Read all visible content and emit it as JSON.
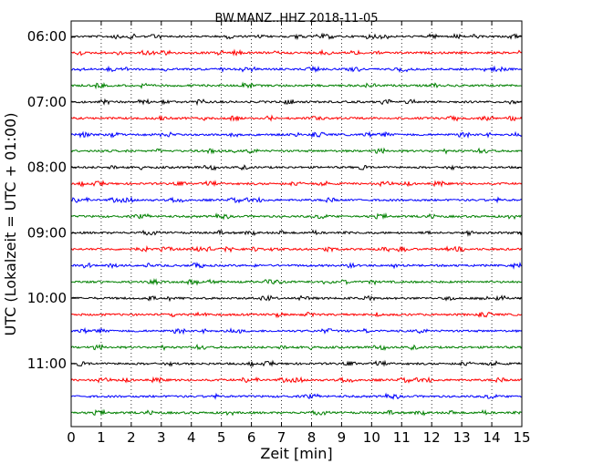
{
  "chart_data": {
    "type": "line",
    "title": "BW.MANZ..HHZ 2018-11-05",
    "xlabel": "Zeit  [min]",
    "ylabel": "UTC (Lokalzeit = UTC + 01:00)",
    "xlim": [
      0,
      15
    ],
    "x_ticks": [
      "0",
      "1",
      "2",
      "3",
      "4",
      "5",
      "6",
      "7",
      "8",
      "9",
      "10",
      "11",
      "12",
      "13",
      "14",
      "15"
    ],
    "y_tick_labels": [
      "06:00",
      "07:00",
      "08:00",
      "09:00",
      "10:00",
      "11:00"
    ],
    "rows_per_hour": 4,
    "row_count": 24,
    "row_colors": [
      "#000000",
      "#ff0000",
      "#0000ff",
      "#008000"
    ],
    "grid": "vertical dotted at each minute"
  }
}
